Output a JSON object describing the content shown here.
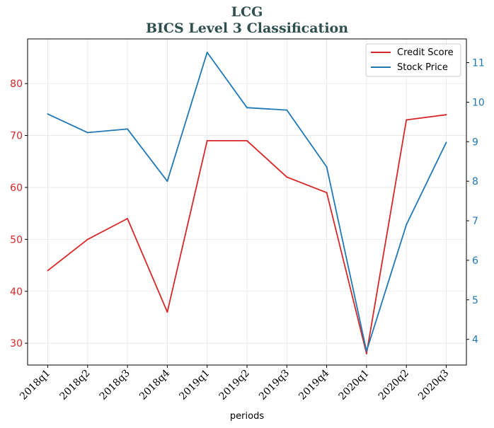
{
  "chart_data": {
    "type": "line",
    "title": "LCG",
    "subtitle": "BICS Level 3 Classification",
    "xlabel": "periods",
    "categories": [
      "2018q1",
      "2018q2",
      "2018q3",
      "2018q4",
      "2019q1",
      "2019q2",
      "2019q3",
      "2019q4",
      "2020q1",
      "2020q2",
      "2020q3"
    ],
    "series": [
      {
        "name": "Credit Score",
        "axis": "left",
        "color": "#d62728",
        "values": [
          44,
          50,
          54,
          36,
          69,
          69,
          62,
          59,
          28,
          73,
          74
        ]
      },
      {
        "name": "Stock Price",
        "axis": "right",
        "color": "#1f77b4",
        "values": [
          9.7,
          9.23,
          9.32,
          8.0,
          11.26,
          9.86,
          9.8,
          8.36,
          3.7,
          6.9,
          8.98
        ]
      }
    ],
    "ylim_left": [
      25.8,
      88.6
    ],
    "yticks_left": [
      30,
      40,
      50,
      60,
      70,
      80
    ],
    "ylim_right": [
      3.35,
      11.6
    ],
    "yticks_right": [
      4,
      5,
      6,
      7,
      8,
      9,
      10,
      11
    ],
    "grid": true,
    "legend": "top-right"
  }
}
